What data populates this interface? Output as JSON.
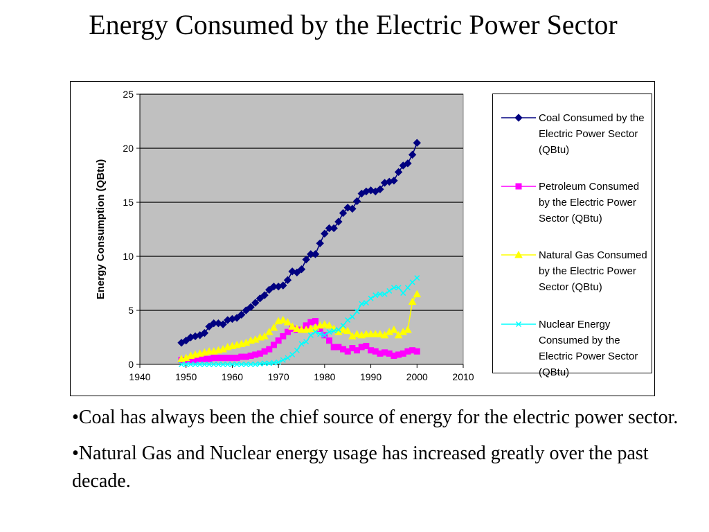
{
  "slide": {
    "title": "Energy Consumed by the Electric Power Sector",
    "bullets": [
      "•Coal has always been the chief source of energy for the electric power sector.",
      "•Natural Gas and Nuclear energy usage has increased greatly over the past decade."
    ]
  },
  "chart_data": {
    "type": "line",
    "title": "",
    "xlabel": "",
    "ylabel": "Energy Consumption (QBtu)",
    "xlim": [
      1940,
      2010
    ],
    "ylim": [
      0,
      25
    ],
    "xticks": [
      1940,
      1950,
      1960,
      1970,
      1980,
      1990,
      2000,
      2010
    ],
    "yticks": [
      0,
      5,
      10,
      15,
      20,
      25
    ],
    "grid": "horizontal",
    "plot_background": "#c0c0c0",
    "legend_position": "right",
    "x": [
      1949,
      1950,
      1951,
      1952,
      1953,
      1954,
      1955,
      1956,
      1957,
      1958,
      1959,
      1960,
      1961,
      1962,
      1963,
      1964,
      1965,
      1966,
      1967,
      1968,
      1969,
      1970,
      1971,
      1972,
      1973,
      1974,
      1975,
      1976,
      1977,
      1978,
      1979,
      1980,
      1981,
      1982,
      1983,
      1984,
      1985,
      1986,
      1987,
      1988,
      1989,
      1990,
      1991,
      1992,
      1993,
      1994,
      1995,
      1996,
      1997,
      1998,
      1999,
      2000
    ],
    "series": [
      {
        "name": "Coal Consumed by the Electric Power Sector (QBtu)",
        "color": "#000080",
        "marker": "diamond",
        "values": [
          2.0,
          2.2,
          2.5,
          2.6,
          2.7,
          2.9,
          3.5,
          3.8,
          3.8,
          3.7,
          4.1,
          4.2,
          4.3,
          4.6,
          5.0,
          5.3,
          5.7,
          6.1,
          6.4,
          6.9,
          7.2,
          7.2,
          7.3,
          7.8,
          8.6,
          8.5,
          8.8,
          9.7,
          10.2,
          10.2,
          11.2,
          12.1,
          12.6,
          12.6,
          13.2,
          14.0,
          14.5,
          14.4,
          15.1,
          15.8,
          16.0,
          16.1,
          16.0,
          16.2,
          16.8,
          16.9,
          17.0,
          17.8,
          18.4,
          18.6,
          19.4,
          20.5
        ]
      },
      {
        "name": "Petroleum Consumed by the Electric Power Sector (QBtu)",
        "color": "#ff00ff",
        "marker": "square",
        "values": [
          0.4,
          0.4,
          0.4,
          0.4,
          0.5,
          0.5,
          0.5,
          0.6,
          0.6,
          0.6,
          0.6,
          0.6,
          0.6,
          0.7,
          0.7,
          0.8,
          0.9,
          1.0,
          1.2,
          1.4,
          1.8,
          2.2,
          2.6,
          3.0,
          3.3,
          3.2,
          3.2,
          3.6,
          3.9,
          4.0,
          3.3,
          2.7,
          2.2,
          1.6,
          1.6,
          1.4,
          1.2,
          1.5,
          1.3,
          1.6,
          1.7,
          1.3,
          1.2,
          1.0,
          1.1,
          1.0,
          0.8,
          0.9,
          1.0,
          1.2,
          1.3,
          1.2
        ]
      },
      {
        "name": "Natural Gas Consumed by the Electric Power Sector (QBtu)",
        "color": "#ffff00",
        "marker": "triangle",
        "values": [
          0.5,
          0.6,
          0.8,
          0.9,
          1.0,
          1.1,
          1.2,
          1.2,
          1.3,
          1.4,
          1.6,
          1.7,
          1.8,
          1.9,
          2.0,
          2.2,
          2.3,
          2.5,
          2.6,
          3.0,
          3.4,
          4.0,
          4.1,
          3.9,
          3.5,
          3.3,
          3.2,
          3.2,
          3.3,
          3.4,
          3.6,
          3.7,
          3.6,
          3.3,
          3.0,
          3.2,
          3.1,
          2.6,
          2.8,
          2.7,
          2.8,
          2.8,
          2.8,
          2.8,
          2.7,
          3.0,
          3.2,
          2.7,
          3.0,
          3.2,
          5.8,
          6.5
        ]
      },
      {
        "name": "Nuclear Energy Consumed by the Electric Power Sector (QBtu)",
        "color": "#00ffff",
        "marker": "x",
        "values": [
          0,
          0,
          0,
          0,
          0,
          0,
          0,
          0,
          0,
          0,
          0,
          0,
          0,
          0,
          0,
          0,
          0,
          0.05,
          0.1,
          0.1,
          0.15,
          0.2,
          0.4,
          0.6,
          0.9,
          1.3,
          1.9,
          2.1,
          2.7,
          3.0,
          2.8,
          2.7,
          3.0,
          3.1,
          3.2,
          3.6,
          4.1,
          4.4,
          4.9,
          5.6,
          5.7,
          6.1,
          6.4,
          6.5,
          6.5,
          6.8,
          7.1,
          7.1,
          6.6,
          7.1,
          7.6,
          8.0
        ]
      }
    ]
  }
}
